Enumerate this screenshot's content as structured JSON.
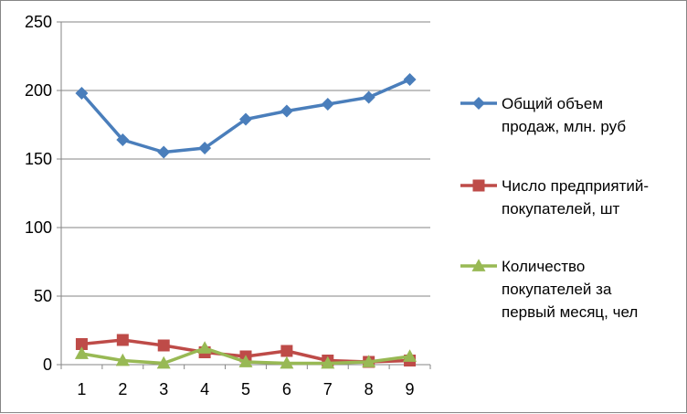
{
  "chart_data": {
    "type": "line",
    "categories": [
      "1",
      "2",
      "3",
      "4",
      "5",
      "6",
      "7",
      "8",
      "9"
    ],
    "ylim": [
      0,
      250
    ],
    "yticks": [
      "0",
      "50",
      "100",
      "150",
      "200",
      "250"
    ],
    "grid": true,
    "legend_position": "right",
    "series": [
      {
        "name": "Общий объем продаж, млн. руб",
        "legend_lines": [
          "Общий объем",
          "продаж, млн. руб"
        ],
        "color": "#4A7EBB",
        "marker": "diamond",
        "values": [
          198,
          164,
          155,
          158,
          179,
          185,
          190,
          195,
          208
        ]
      },
      {
        "name": "Число предприятий-покупателей, шт",
        "legend_lines": [
          "Число предприятий-",
          "покупателей, шт"
        ],
        "color": "#BE4B48",
        "marker": "square",
        "values": [
          15,
          18,
          14,
          9,
          6,
          10,
          3,
          2,
          3
        ]
      },
      {
        "name": "Количество покупателей за первый месяц, чел",
        "legend_lines": [
          "Количество",
          "покупателей за",
          "первый месяц, чел"
        ],
        "color": "#98B954",
        "marker": "triangle",
        "values": [
          8,
          3,
          1,
          12,
          2,
          1,
          1,
          2,
          6
        ]
      }
    ]
  }
}
